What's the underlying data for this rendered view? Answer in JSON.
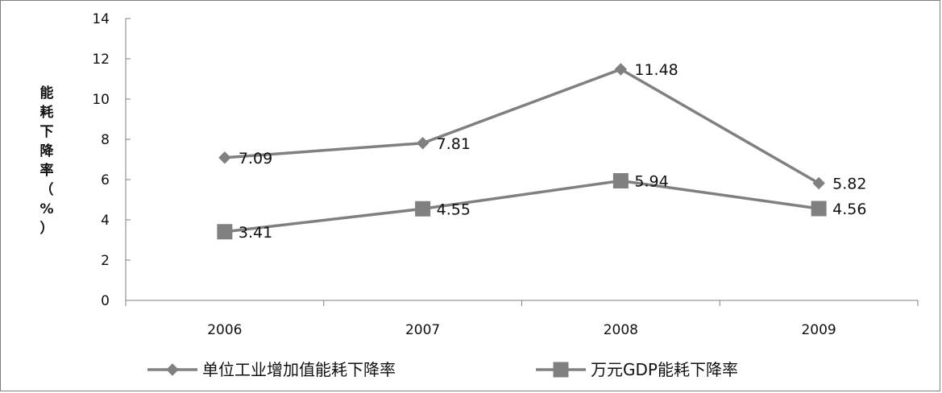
{
  "chart_data": {
    "type": "line",
    "categories": [
      "2006",
      "2007",
      "2008",
      "2009"
    ],
    "series": [
      {
        "name": "单位工业增加值能耗下降率",
        "marker": "diamond",
        "color": "#808080",
        "values": [
          7.09,
          7.81,
          11.48,
          5.82
        ]
      },
      {
        "name": "万元GDP能耗下降率",
        "marker": "square",
        "color": "#808080",
        "values": [
          3.41,
          4.55,
          5.94,
          4.56
        ]
      }
    ],
    "data_labels": [
      [
        "7.09",
        "7.81",
        "11.48",
        "5.82"
      ],
      [
        "3.41",
        "4.55",
        "5.94",
        "4.56"
      ]
    ],
    "ylabel": "能耗下降率（%）",
    "ylabel_chars": [
      "能",
      "耗",
      "下",
      "降",
      "率",
      "（",
      "%",
      "）"
    ],
    "ylim": [
      0,
      14
    ],
    "yticks": [
      "0",
      "2",
      "4",
      "6",
      "8",
      "10",
      "12",
      "14"
    ],
    "grid": false,
    "legend_position": "bottom"
  }
}
